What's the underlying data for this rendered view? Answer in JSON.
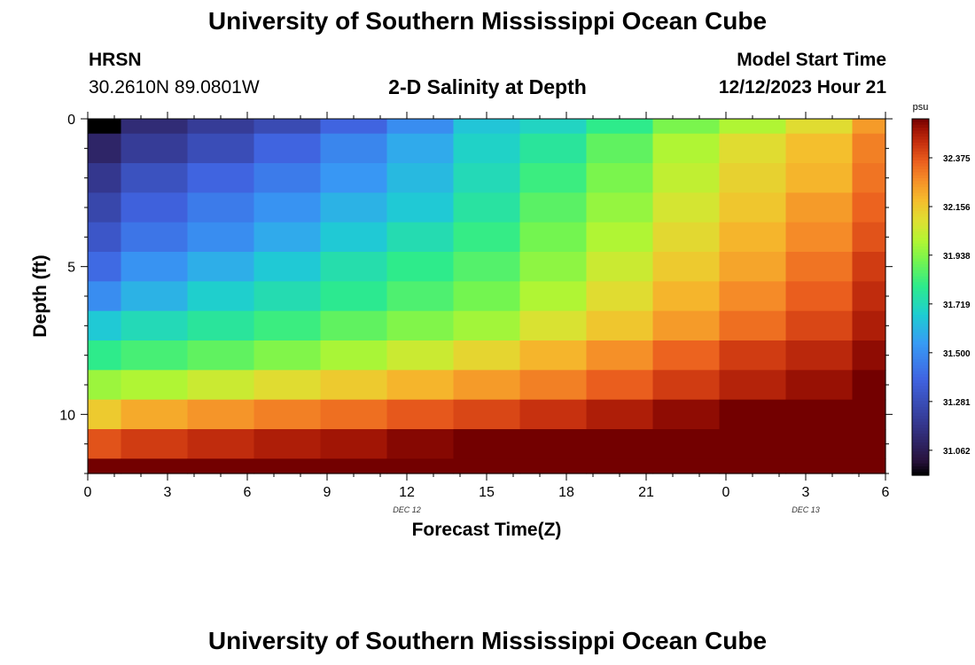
{
  "page": {
    "title": "University of Southern Mississippi Ocean Cube",
    "station": "HRSN",
    "coordinates": "30.2610N  89.0801W",
    "chart_title": "2-D Salinity at Depth",
    "model_start_label": "Model Start Time",
    "model_start_value": "12/12/2023 Hour 21",
    "bottom_title": "University of Southern Mississippi Ocean Cube"
  },
  "chart_data": {
    "type": "heatmap",
    "title": "2-D Salinity at Depth",
    "xlabel": "Forecast Time(Z)",
    "ylabel": "Depth (ft)",
    "colorbar_unit": "psu",
    "x_tick_labels": [
      "0",
      "3",
      "6",
      "9",
      "12",
      "15",
      "18",
      "21",
      "0",
      "3",
      "6"
    ],
    "x_ticks_hours": [
      0,
      3,
      6,
      9,
      12,
      15,
      18,
      21,
      24,
      27,
      30
    ],
    "x_range_hours": [
      0,
      30
    ],
    "day_labels": [
      {
        "text": "DEC 12",
        "hour": 12
      },
      {
        "text": "DEC 13",
        "hour": 27
      }
    ],
    "y_tick_labels": [
      "0",
      "5",
      "10"
    ],
    "y_ticks": [
      0,
      5,
      10
    ],
    "y_range": [
      0,
      12
    ],
    "colorbar_ticks": [
      "31.062",
      "31.281",
      "31.500",
      "31.719",
      "31.938",
      "32.156",
      "32.375"
    ],
    "colorbar_range": [
      30.95,
      32.55
    ],
    "column_hours": [
      0,
      2.5,
      5,
      7.5,
      10,
      12.5,
      15,
      17.5,
      20,
      22.5,
      25,
      27.5,
      30
    ],
    "depth_bins": [
      [
        0,
        0.5
      ],
      [
        0.5,
        1.5
      ],
      [
        1.5,
        2.5
      ],
      [
        2.5,
        3.5
      ],
      [
        3.5,
        4.5
      ],
      [
        4.5,
        5.5
      ],
      [
        5.5,
        6.5
      ],
      [
        6.5,
        7.5
      ],
      [
        7.5,
        8.5
      ],
      [
        8.5,
        9.5
      ],
      [
        9.5,
        10.5
      ],
      [
        10.5,
        11.5
      ],
      [
        11.5,
        12
      ]
    ],
    "salinity": [
      [
        30.95,
        31.13,
        31.2,
        31.27,
        31.38,
        31.5,
        31.65,
        31.7,
        31.8,
        31.92,
        32.0,
        32.1,
        32.25
      ],
      [
        31.1,
        31.2,
        31.28,
        31.38,
        31.48,
        31.58,
        31.69,
        31.77,
        31.88,
        32.0,
        32.1,
        32.18,
        32.3
      ],
      [
        31.18,
        31.3,
        31.38,
        31.45,
        31.53,
        31.62,
        31.72,
        31.82,
        31.92,
        32.03,
        32.13,
        32.2,
        32.32
      ],
      [
        31.25,
        31.37,
        31.45,
        31.52,
        31.6,
        31.66,
        31.76,
        31.87,
        31.96,
        32.07,
        32.16,
        32.25,
        32.35
      ],
      [
        31.32,
        31.43,
        31.5,
        31.58,
        31.66,
        31.73,
        31.81,
        31.91,
        32.0,
        32.11,
        32.2,
        32.28,
        32.38
      ],
      [
        31.4,
        31.52,
        31.59,
        31.66,
        31.74,
        31.8,
        31.86,
        31.95,
        32.05,
        32.15,
        32.23,
        32.32,
        32.42
      ],
      [
        31.5,
        31.6,
        31.68,
        31.73,
        31.79,
        31.85,
        31.91,
        32.0,
        32.1,
        32.2,
        32.28,
        32.36,
        32.45
      ],
      [
        31.66,
        31.72,
        31.77,
        31.82,
        31.88,
        31.93,
        31.98,
        32.08,
        32.16,
        32.25,
        32.33,
        32.4,
        32.48
      ],
      [
        31.8,
        31.84,
        31.88,
        31.93,
        31.99,
        32.05,
        32.12,
        32.2,
        32.27,
        32.35,
        32.42,
        32.46,
        32.52
      ],
      [
        31.97,
        32.0,
        32.05,
        32.1,
        32.15,
        32.2,
        32.25,
        32.3,
        32.36,
        32.42,
        32.47,
        32.51,
        32.56
      ],
      [
        32.15,
        32.22,
        32.26,
        32.3,
        32.33,
        32.37,
        32.4,
        32.44,
        32.48,
        32.52,
        32.55,
        32.58,
        32.62
      ],
      [
        32.38,
        32.42,
        32.45,
        32.48,
        32.5,
        32.53,
        32.56,
        32.58,
        32.61,
        32.64,
        32.67,
        32.7,
        32.75
      ],
      [
        32.55,
        32.58,
        32.6,
        32.62,
        32.64,
        32.66,
        32.69,
        32.72,
        32.75,
        32.78,
        32.82,
        32.86,
        32.92
      ]
    ]
  }
}
